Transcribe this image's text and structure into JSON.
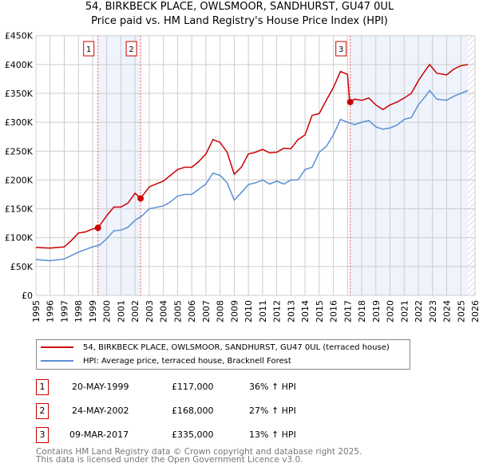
{
  "title": "54, BIRKBECK PLACE, OWLSMOOR, SANDHURST, GU47 0UL",
  "subtitle": "Price paid vs. HM Land Registry's House Price Index (HPI)",
  "chart_data": {
    "type": "line",
    "title": "54, BIRKBECK PLACE, OWLSMOOR, SANDHURST, GU47 0UL",
    "xlim": [
      1995,
      2026
    ],
    "ylim": [
      0,
      450000
    ],
    "yticks": [
      0,
      50000,
      100000,
      150000,
      200000,
      250000,
      300000,
      350000,
      400000,
      450000
    ],
    "ytick_labels": [
      "£0",
      "£50K",
      "£100K",
      "£150K",
      "£200K",
      "£250K",
      "£300K",
      "£350K",
      "£400K",
      "£450K"
    ],
    "xticks": [
      1995,
      1996,
      1997,
      1998,
      1999,
      2000,
      2001,
      2002,
      2003,
      2004,
      2005,
      2006,
      2007,
      2008,
      2009,
      2010,
      2011,
      2012,
      2013,
      2014,
      2015,
      2016,
      2017,
      2018,
      2019,
      2020,
      2021,
      2022,
      2023,
      2024,
      2025,
      2026
    ],
    "grid": true,
    "colors": {
      "property": "#cc0000",
      "hpi": "#5b8fd4",
      "shade": "#eef3fc"
    },
    "shaded_ranges": [
      [
        1999.38,
        2002.39
      ],
      [
        2017.19,
        2025.5
      ]
    ],
    "hatched_from": 2025.5,
    "series": [
      {
        "name": "54, BIRKBECK PLACE, OWLSMOOR, SANDHURST, GU47 0UL (terraced house)",
        "color": "#cc0000",
        "x": [
          1995,
          1996,
          1997,
          1997.5,
          1998,
          1998.5,
          1999,
          1999.38,
          2000,
          2000.5,
          2001,
          2001.5,
          2002,
          2002.39,
          2003,
          2003.5,
          2004,
          2004.5,
          2005,
          2005.5,
          2006,
          2006.5,
          2007,
          2007.5,
          2008,
          2008.5,
          2009,
          2009.5,
          2010,
          2010.5,
          2011,
          2011.5,
          2012,
          2012.5,
          2013,
          2013.5,
          2014,
          2014.5,
          2015,
          2015.5,
          2016,
          2016.5,
          2017,
          2017.15,
          2017.5,
          2018,
          2018.5,
          2019,
          2019.5,
          2020,
          2020.5,
          2021,
          2021.5,
          2022,
          2022.5,
          2022.8,
          2023.3,
          2024,
          2024.5,
          2025,
          2025.5
        ],
        "y": [
          83000,
          82000,
          84000,
          95000,
          108000,
          110000,
          115000,
          117000,
          138000,
          153000,
          153000,
          160000,
          177000,
          168000,
          188000,
          193000,
          198000,
          208000,
          218000,
          222000,
          222000,
          232000,
          245000,
          270000,
          265000,
          248000,
          210000,
          222000,
          245000,
          248000,
          253000,
          247000,
          248000,
          255000,
          254000,
          270000,
          278000,
          312000,
          315000,
          338000,
          360000,
          388000,
          383000,
          335000,
          340000,
          338000,
          342000,
          330000,
          322000,
          330000,
          335000,
          342000,
          350000,
          372000,
          390000,
          400000,
          385000,
          382000,
          392000,
          398000,
          400000
        ]
      },
      {
        "name": "HPI: Average price, terraced house, Bracknell Forest",
        "color": "#5b8fd4",
        "x": [
          1995,
          1996,
          1997,
          1998,
          1999,
          1999.5,
          2000,
          2000.5,
          2001,
          2001.5,
          2002,
          2002.5,
          2003,
          2004,
          2004.5,
          2005,
          2005.5,
          2006,
          2006.5,
          2007,
          2007.5,
          2008,
          2008.5,
          2009,
          2009.5,
          2010,
          2010.5,
          2011,
          2011.5,
          2012,
          2012.5,
          2013,
          2013.5,
          2014,
          2014.5,
          2015,
          2015.5,
          2016,
          2016.5,
          2017,
          2017.5,
          2018,
          2018.5,
          2019,
          2019.5,
          2020,
          2020.5,
          2021,
          2021.5,
          2022,
          2022.5,
          2022.8,
          2023.3,
          2024,
          2024.5,
          2025,
          2025.5
        ],
        "y": [
          62000,
          60000,
          63000,
          75000,
          84000,
          87000,
          98000,
          112000,
          113000,
          118000,
          130000,
          138000,
          150000,
          155000,
          162000,
          172000,
          175000,
          175000,
          184000,
          193000,
          212000,
          208000,
          195000,
          165000,
          178000,
          192000,
          195000,
          200000,
          193000,
          198000,
          193000,
          200000,
          200000,
          218000,
          222000,
          248000,
          258000,
          278000,
          305000,
          300000,
          296000,
          300000,
          303000,
          292000,
          288000,
          290000,
          295000,
          305000,
          308000,
          330000,
          345000,
          355000,
          340000,
          338000,
          345000,
          350000,
          355000
        ]
      }
    ],
    "sales": [
      {
        "label": "1",
        "x": 2002.0,
        "date_x": 1999.38,
        "price": 117000
      },
      {
        "label": "2",
        "date_x": 2002.39,
        "price": 168000
      },
      {
        "label": "3",
        "date_x": 2017.19,
        "price": 335000
      }
    ]
  },
  "legend": [
    {
      "label": "54, BIRKBECK PLACE, OWLSMOOR, SANDHURST, GU47 0UL (terraced house)",
      "color": "#cc0000"
    },
    {
      "label": "HPI: Average price, terraced house, Bracknell Forest",
      "color": "#5b8fd4"
    }
  ],
  "transactions": [
    {
      "num": "1",
      "date": "20-MAY-1999",
      "price": "£117,000",
      "hpi": "36% ↑ HPI"
    },
    {
      "num": "2",
      "date": "24-MAY-2002",
      "price": "£168,000",
      "hpi": "27% ↑ HPI"
    },
    {
      "num": "3",
      "date": "09-MAR-2017",
      "price": "£335,000",
      "hpi": "13% ↑ HPI"
    }
  ],
  "footer": [
    "Contains HM Land Registry data © Crown copyright and database right 2025.",
    "This data is licensed under the Open Government Licence v3.0."
  ]
}
